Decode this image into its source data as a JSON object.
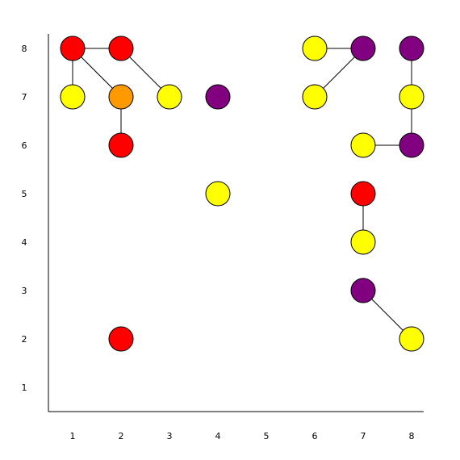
{
  "chart_data": {
    "type": "scatter",
    "title": "",
    "xlabel": "",
    "ylabel": "",
    "xlim": [
      0.5,
      8.5
    ],
    "ylim": [
      0.5,
      8.5
    ],
    "grid": false,
    "x_ticks": [
      "1",
      "2",
      "3",
      "4",
      "5",
      "6",
      "7",
      "8"
    ],
    "y_ticks": [
      "1",
      "2",
      "3",
      "4",
      "5",
      "6",
      "7",
      "8"
    ],
    "colors": {
      "red": "#ff0000",
      "orange": "#ff9900",
      "yellow": "#ffff00",
      "purple": "#800080"
    },
    "points": [
      {
        "id": "a",
        "x": 1,
        "y": 8,
        "color": "red"
      },
      {
        "id": "b",
        "x": 2,
        "y": 8,
        "color": "red"
      },
      {
        "id": "c",
        "x": 1,
        "y": 7,
        "color": "yellow"
      },
      {
        "id": "d",
        "x": 2,
        "y": 7,
        "color": "orange"
      },
      {
        "id": "e",
        "x": 3,
        "y": 7,
        "color": "yellow"
      },
      {
        "id": "f",
        "x": 4,
        "y": 7,
        "color": "purple"
      },
      {
        "id": "g",
        "x": 2,
        "y": 6,
        "color": "red"
      },
      {
        "id": "h",
        "x": 4,
        "y": 5,
        "color": "yellow"
      },
      {
        "id": "i",
        "x": 2,
        "y": 2,
        "color": "red"
      },
      {
        "id": "j",
        "x": 6,
        "y": 8,
        "color": "yellow"
      },
      {
        "id": "k",
        "x": 7,
        "y": 8,
        "color": "purple"
      },
      {
        "id": "l",
        "x": 8,
        "y": 8,
        "color": "purple"
      },
      {
        "id": "m",
        "x": 6,
        "y": 7,
        "color": "yellow"
      },
      {
        "id": "n",
        "x": 8,
        "y": 7,
        "color": "yellow"
      },
      {
        "id": "o",
        "x": 7,
        "y": 6,
        "color": "yellow"
      },
      {
        "id": "p",
        "x": 8,
        "y": 6,
        "color": "purple"
      },
      {
        "id": "q",
        "x": 7,
        "y": 5,
        "color": "red"
      },
      {
        "id": "r",
        "x": 7,
        "y": 4,
        "color": "yellow"
      },
      {
        "id": "s",
        "x": 7,
        "y": 3,
        "color": "purple"
      },
      {
        "id": "t",
        "x": 8,
        "y": 2,
        "color": "yellow"
      }
    ],
    "edges": [
      [
        "a",
        "b"
      ],
      [
        "a",
        "c"
      ],
      [
        "a",
        "d"
      ],
      [
        "b",
        "e"
      ],
      [
        "d",
        "g"
      ],
      [
        "j",
        "k"
      ],
      [
        "k",
        "m"
      ],
      [
        "l",
        "n"
      ],
      [
        "n",
        "p"
      ],
      [
        "o",
        "p"
      ],
      [
        "q",
        "r"
      ],
      [
        "s",
        "t"
      ]
    ]
  }
}
